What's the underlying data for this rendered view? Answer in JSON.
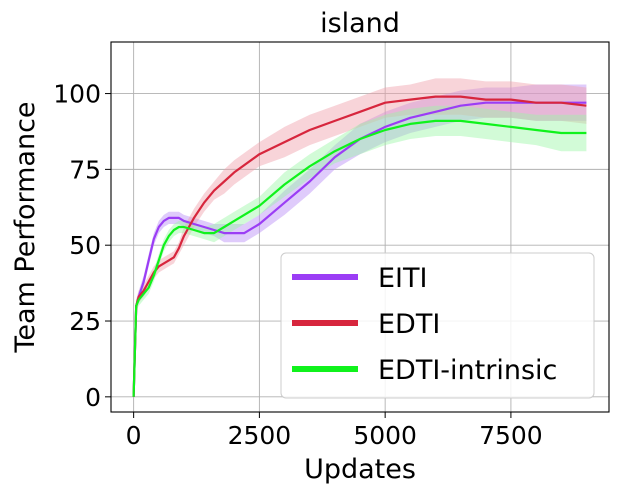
{
  "chart_data": {
    "type": "line",
    "title": "island",
    "xlabel": "Updates",
    "ylabel": "Team Performance",
    "xlim": [
      -450,
      9450
    ],
    "ylim": [
      -5,
      117
    ],
    "xticks": [
      0,
      2500,
      5000,
      7500
    ],
    "yticks": [
      0,
      25,
      50,
      75,
      100
    ],
    "grid": true,
    "legend_position": "lower-right",
    "series": [
      {
        "name": "EITI",
        "color": "#9b3df5",
        "band_color": "#b98cf7",
        "x": [
          0,
          50,
          100,
          200,
          300,
          400,
          500,
          600,
          700,
          800,
          900,
          1000,
          1200,
          1400,
          1600,
          1800,
          2000,
          2200,
          2500,
          3000,
          3500,
          4000,
          4500,
          5000,
          5500,
          6000,
          6500,
          7000,
          7500,
          8000,
          8500,
          9000
        ],
        "y": [
          0,
          30,
          33,
          38,
          45,
          52,
          56,
          58,
          59,
          59,
          59,
          58,
          57,
          56,
          55,
          54,
          54,
          54,
          57,
          64,
          71,
          79,
          85,
          89,
          92,
          94,
          96,
          97,
          97,
          97,
          97,
          97
        ],
        "band": [
          0,
          2,
          2,
          2,
          2,
          2,
          2,
          2,
          2,
          2,
          2,
          2,
          2,
          2,
          2,
          3,
          3,
          3,
          3,
          4,
          4,
          4,
          5,
          5,
          5,
          5,
          5,
          5,
          5,
          6,
          6,
          6
        ]
      },
      {
        "name": "EDTI",
        "color": "#d7263d",
        "band_color": "#f0a0aa",
        "x": [
          0,
          50,
          100,
          200,
          300,
          400,
          500,
          600,
          700,
          800,
          900,
          1000,
          1200,
          1400,
          1600,
          1800,
          2000,
          2500,
          3000,
          3500,
          4000,
          4500,
          5000,
          5500,
          6000,
          6500,
          7000,
          7500,
          8000,
          8500,
          9000
        ],
        "y": [
          0,
          30,
          33,
          35,
          38,
          41,
          43,
          44,
          45,
          46,
          49,
          53,
          59,
          64,
          68,
          71,
          74,
          80,
          84,
          88,
          91,
          94,
          97,
          98,
          99,
          99,
          98,
          98,
          97,
          97,
          96
        ],
        "band": [
          0,
          2,
          2,
          2,
          2,
          2,
          2,
          2,
          2,
          2,
          2,
          3,
          3,
          3,
          3,
          4,
          4,
          4,
          5,
          5,
          5,
          5,
          5,
          5,
          6,
          6,
          6,
          6,
          6,
          6,
          6
        ]
      },
      {
        "name": "EDTI-intrinsic",
        "color": "#10f21c",
        "band_color": "#9cf7a6",
        "x": [
          0,
          50,
          100,
          200,
          300,
          400,
          500,
          600,
          700,
          800,
          900,
          1000,
          1200,
          1400,
          1600,
          1800,
          2000,
          2500,
          3000,
          3500,
          4000,
          4500,
          5000,
          5500,
          6000,
          6500,
          7000,
          7500,
          8000,
          8500,
          9000
        ],
        "y": [
          0,
          30,
          32,
          34,
          36,
          40,
          45,
          50,
          53,
          55,
          56,
          56,
          55,
          54,
          54,
          56,
          58,
          63,
          70,
          76,
          81,
          85,
          88,
          90,
          91,
          91,
          90,
          89,
          88,
          87,
          87
        ],
        "band": [
          0,
          2,
          2,
          2,
          2,
          2,
          2,
          2,
          2,
          2,
          2,
          2,
          2,
          2,
          3,
          3,
          3,
          3,
          4,
          4,
          4,
          5,
          5,
          5,
          5,
          5,
          5,
          5,
          5,
          6,
          6
        ]
      }
    ]
  }
}
